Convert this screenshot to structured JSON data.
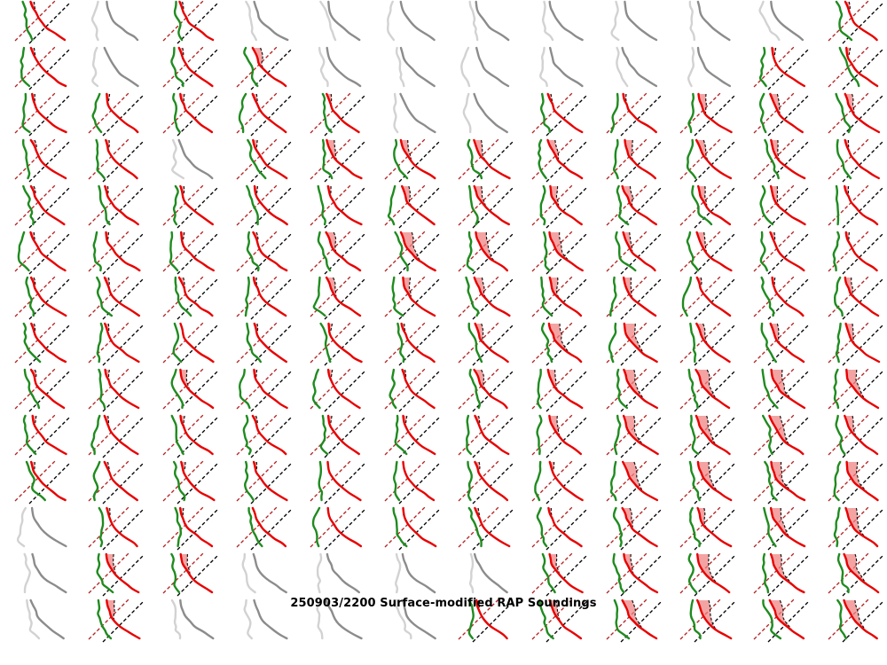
{
  "title": "250903/2200 Surface-modified RAP Soundings",
  "colors": {
    "background": "#ffffff",
    "temperature": "#e80000",
    "dewpoint": "#1f8b1f",
    "temperature_missing": "#8c8c8c",
    "dewpoint_missing": "#d2d2d2",
    "isotherm_red_dashed": "#b22222",
    "isotherm_black_dashed": "#000000",
    "cape_fill": "#f08080",
    "parcel_trace": "#111111",
    "title_color": "#000000"
  },
  "chart_data": {
    "type": "small_multiples_skewt",
    "title": "250903/2200 Surface-modified RAP Soundings",
    "grid": {
      "rows": 14,
      "cols": 12
    },
    "panel_legend": {
      "red_solid_line": "temperature profile",
      "green_solid_line": "dewpoint profile",
      "red_dashed_diagonal": "skew-T isotherm reference (lower-left)",
      "black_dashed_diagonal": "skew-T isotherm reference (upper-right)",
      "salmon_shaded_area": "CAPE area between temperature and dashed parcel trace",
      "gray_lines": "missing / unmodified sounding (inactive panel)"
    },
    "cell_code_legend": {
      "g": "inactive gray sounding (no dashed references, no CAPE)",
      "0": "active sounding, no CAPE shading",
      "1": "active sounding, small CAPE area",
      "2": "active sounding, moderate CAPE area",
      "3": "active sounding, large CAPE area"
    },
    "cells": [
      "1g1gggggggg1",
      "1g12gggggg11",
      "11111gg11222",
      "11g122222221",
      "111112222221",
      "111123332211",
      "111122222112",
      "110111233222",
      "112111223333",
      "111111123332",
      "111100113333",
      "g11000112233",
      "g22gggg22333",
      "g2gggg123333"
    ]
  }
}
